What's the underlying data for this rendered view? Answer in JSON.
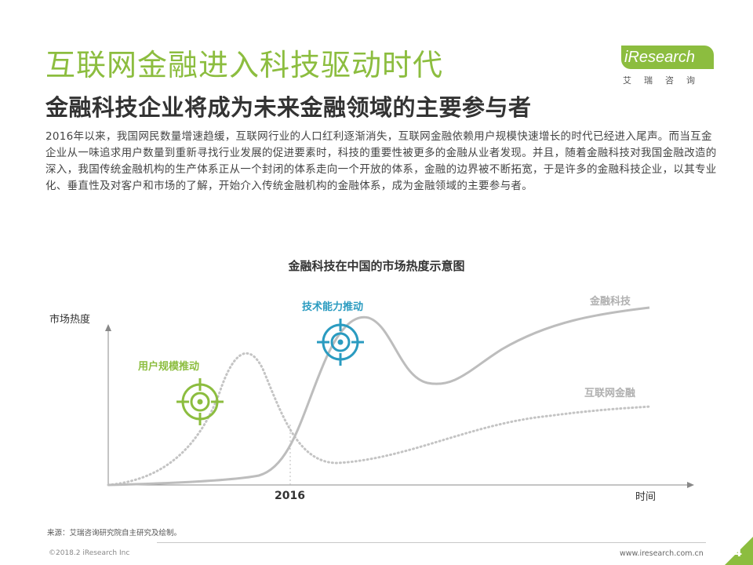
{
  "header": {
    "title": "互联网金融进入科技驱动时代",
    "subtitle": "金融科技企业将成为未来金融领域的主要参与者",
    "body": "2016年以来，我国网民数量增速趋缓，互联网行业的人口红利逐渐消失，互联网金融依赖用户规模快速增长的时代已经进入尾声。而当互金企业从一味追求用户数量到重新寻找行业发展的促进要素时，科技的重要性被更多的金融从业者发现。并且，随着金融科技对我国金融改造的深入，我国传统金融机构的生产体系正从一个封闭的体系走向一个开放的体系，金融的边界被不断拓宽，于是许多的金融科技企业，以其专业化、垂直性及对客户和市场的了解，开始介入传统金融机构的金融体系，成为金融领域的主要参与者。"
  },
  "logo": {
    "name": "iResearch",
    "sub": "艾瑞咨询"
  },
  "chart_data": {
    "type": "line",
    "title": "金融科技在中国的市场热度示意图",
    "ylabel": "市场热度",
    "xlabel": "时间",
    "x_marker": "2016",
    "series": [
      {
        "name": "金融科技",
        "style": "solid",
        "color": "#bdbdbd"
      },
      {
        "name": "互联网金融",
        "style": "dotted",
        "color": "#bdbdbd"
      }
    ],
    "annotations": [
      {
        "label": "用户规模推动",
        "color": "#8cbd3f",
        "icon": "target-icon"
      },
      {
        "label": "技术能力推动",
        "color": "#2a9bc0",
        "icon": "target-icon"
      }
    ]
  },
  "footer": {
    "source": "来源：艾瑞咨询研究院自主研究及绘制。",
    "copyright": "©2018.2 iResearch Inc",
    "url": "www.iresearch.com.cn",
    "page": "4"
  },
  "colors": {
    "accent": "#8cbd3f",
    "blue": "#2a9bc0",
    "curve": "#bdbdbd"
  }
}
